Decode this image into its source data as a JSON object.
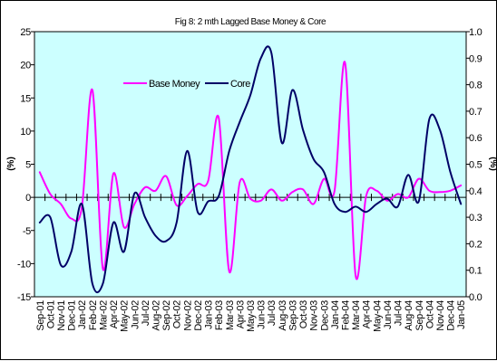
{
  "chart_data": {
    "type": "line",
    "title": "Fig 8: 2 mth Lagged Base Money & Core",
    "ylabel_left": "(%)",
    "ylabel_right": "(%)",
    "ylim_left": [
      -15,
      25
    ],
    "yticks_left": [
      "25",
      "20",
      "15",
      "10",
      "5",
      "0",
      "-5",
      "-10",
      "-15"
    ],
    "ylim_right": [
      0.0,
      1.0
    ],
    "yticks_right": [
      "1.0",
      "0.9",
      "0.8",
      "0.7",
      "0.6",
      "0.5",
      "0.4",
      "0.3",
      "0.2",
      "0.1",
      "0.0"
    ],
    "legend_position": "upper-left",
    "plot_background": "#ccffff",
    "x": [
      "Sep-01",
      "Oct-01",
      "Nov-01",
      "Dec-01",
      "Jan-02",
      "Feb-02",
      "Mar-02",
      "Apr-02",
      "May-02",
      "Jun-02",
      "Jul-02",
      "Aug-02",
      "Sep-02",
      "Oct-02",
      "Nov-02",
      "Dec-02",
      "Jan-03",
      "Feb-03",
      "Mar-03",
      "Apr-03",
      "May-03",
      "Jun-03",
      "Jul-03",
      "Aug-03",
      "Sep-03",
      "Oct-03",
      "Nov-03",
      "Dec-03",
      "Jan-04",
      "Feb-04",
      "Mar-04",
      "Apr-04",
      "May-04",
      "Jun-04",
      "Jul-04",
      "Aug-04",
      "Sep-04",
      "Oct-04",
      "Nov-04",
      "Dec-04",
      "Jan-05"
    ],
    "series": [
      {
        "name": "Base Money",
        "axis": "left",
        "color": "#ff00ff",
        "values": [
          3.8,
          0.5,
          -1.0,
          -3.2,
          -1.5,
          16.2,
          -10.8,
          3.6,
          -4.5,
          -1.0,
          1.5,
          1.0,
          3.2,
          -1.2,
          0.2,
          2.0,
          2.5,
          12.0,
          -11.2,
          2.3,
          -0.2,
          -0.5,
          1.2,
          -0.5,
          0.8,
          1.2,
          -1.0,
          2.8,
          1.0,
          20.3,
          -11.8,
          0.2,
          1.0,
          -0.5,
          0.5,
          0.0,
          2.8,
          1.0,
          0.8,
          1.0,
          1.8
        ]
      },
      {
        "name": "Core",
        "axis": "right",
        "color": "#000066",
        "values": [
          0.28,
          0.3,
          0.12,
          0.17,
          0.35,
          0.05,
          0.05,
          0.28,
          0.17,
          0.39,
          0.3,
          0.23,
          0.21,
          0.28,
          0.55,
          0.32,
          0.36,
          0.38,
          0.55,
          0.66,
          0.76,
          0.9,
          0.92,
          0.58,
          0.78,
          0.63,
          0.52,
          0.47,
          0.35,
          0.32,
          0.34,
          0.32,
          0.35,
          0.37,
          0.34,
          0.46,
          0.36,
          0.67,
          0.63,
          0.47,
          0.35
        ]
      }
    ]
  }
}
